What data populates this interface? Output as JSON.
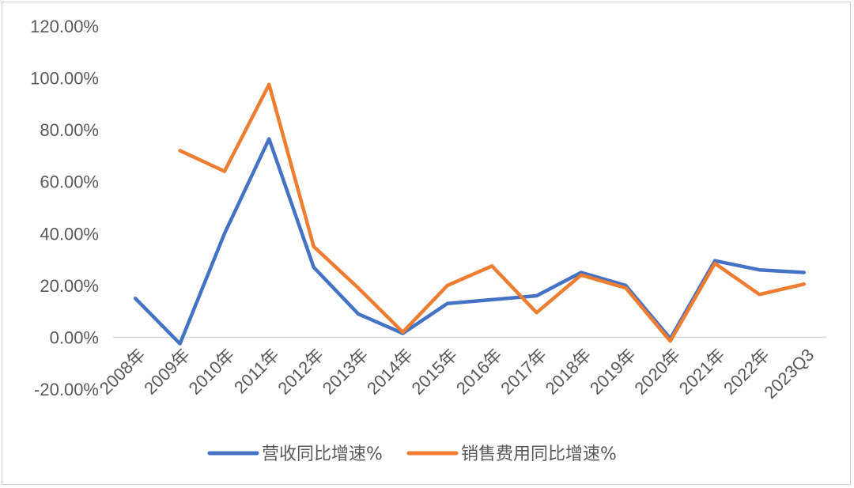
{
  "chart_data": {
    "type": "line",
    "title": "",
    "xlabel": "",
    "ylabel": "",
    "ylim": [
      -20,
      120
    ],
    "y_ticks": [
      "120.00%",
      "100.00%",
      "80.00%",
      "60.00%",
      "40.00%",
      "20.00%",
      "0.00%",
      "-20.00%"
    ],
    "categories": [
      "2008年",
      "2009年",
      "2010年",
      "2011年",
      "2012年",
      "2013年",
      "2014年",
      "2015年",
      "2016年",
      "2017年",
      "2018年",
      "2019年",
      "2020年",
      "2021年",
      "2022年",
      "2023Q3"
    ],
    "series": [
      {
        "name": "营收同比增速%",
        "color": "#4472C4",
        "values": [
          15.0,
          -2.5,
          40.0,
          76.5,
          27.0,
          9.0,
          1.5,
          13.0,
          14.5,
          16.0,
          25.0,
          20.0,
          -0.5,
          29.5,
          26.0,
          25.0
        ]
      },
      {
        "name": "销售费用同比增速%",
        "color": "#ED7D31",
        "values": [
          null,
          72.0,
          64.0,
          97.5,
          35.0,
          19.0,
          2.0,
          20.0,
          27.5,
          9.5,
          24.0,
          19.0,
          -1.5,
          28.5,
          16.5,
          20.5
        ]
      }
    ],
    "grid": false,
    "legend_position": "bottom"
  }
}
